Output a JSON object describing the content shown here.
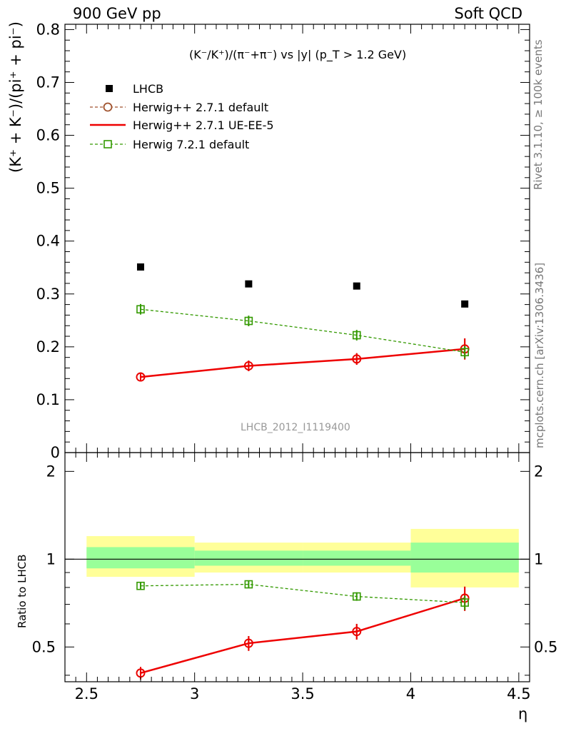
{
  "header": {
    "left": "900 GeV pp",
    "right": "Soft QCD"
  },
  "side_labels": {
    "upper": "Rivet 3.1.10, ≥ 100k events",
    "lower": "mcplots.cern.ch [arXiv:1306.3436]"
  },
  "chart_data": [
    {
      "type": "scatter",
      "title": "(K⁻/K⁺)/(π⁻+π⁻) vs |y| (p_T > 1.2 GeV)",
      "ylabel": "(K⁺ + K⁻)/(pi⁺ + pi⁻)",
      "analysis_id": "LHCB_2012_I1119400",
      "xlim": [
        2.4,
        4.55
      ],
      "ylim": [
        0,
        0.81
      ],
      "yticks": [
        "0.1",
        "0.2",
        "0.3",
        "0.4",
        "0.5",
        "0.6",
        "0.7",
        "0.8"
      ],
      "legend_position": "top-left",
      "series": [
        {
          "name": "LHCB",
          "style": "data",
          "color": "#000000",
          "x": [
            2.75,
            3.25,
            3.75,
            4.25
          ],
          "y": [
            0.351,
            0.319,
            0.315,
            0.281
          ],
          "err": [
            0,
            0,
            0,
            0
          ]
        },
        {
          "name": "Herwig++ 2.7.1 default",
          "style": "dashed-circle",
          "color": "#a0522d",
          "x": [
            2.75,
            3.25,
            3.75,
            4.25
          ],
          "y": [
            0.143,
            0.164,
            0.177,
            0.196
          ],
          "err": [
            0.008,
            0.01,
            0.011,
            0.02
          ]
        },
        {
          "name": "Herwig++ 2.7.1 UE-EE-5",
          "style": "solid-circle",
          "color": "#ee0000",
          "x": [
            2.75,
            3.25,
            3.75,
            4.25
          ],
          "y": [
            0.143,
            0.164,
            0.177,
            0.196
          ],
          "err": [
            0.008,
            0.01,
            0.011,
            0.02
          ]
        },
        {
          "name": "Herwig 7.2.1 default",
          "style": "dashed-square",
          "color": "#339900",
          "x": [
            2.75,
            3.25,
            3.75,
            4.25
          ],
          "y": [
            0.271,
            0.249,
            0.222,
            0.19
          ],
          "err": [
            0.01,
            0.01,
            0.01,
            0.012
          ]
        }
      ]
    },
    {
      "type": "scatter",
      "ylabel": "Ratio to LHCB",
      "xlabel": "η",
      "xlim": [
        2.4,
        4.55
      ],
      "ylim": [
        0.38,
        2.32
      ],
      "yticks": [
        "0.5",
        "1",
        "2"
      ],
      "xticks": [
        "2.5",
        "3",
        "3.5",
        "4",
        "4.5"
      ],
      "log_y": true,
      "bands": [
        {
          "x": [
            2.5,
            3.0
          ],
          "green": [
            0.93,
            1.1
          ],
          "yellow": [
            0.87,
            1.2
          ]
        },
        {
          "x": [
            3.0,
            3.5
          ],
          "green": [
            0.95,
            1.07
          ],
          "yellow": [
            0.9,
            1.14
          ]
        },
        {
          "x": [
            3.5,
            4.0
          ],
          "green": [
            0.95,
            1.07
          ],
          "yellow": [
            0.9,
            1.14
          ]
        },
        {
          "x": [
            4.0,
            4.5
          ],
          "green": [
            0.9,
            1.14
          ],
          "yellow": [
            0.8,
            1.27
          ]
        }
      ],
      "series": [
        {
          "name": "Herwig++ 2.7.1 default",
          "style": "dashed-circle",
          "color": "#a0522d",
          "x": [
            2.75,
            3.25,
            3.75,
            4.25
          ],
          "y": [
            0.407,
            0.515,
            0.565,
            0.735
          ],
          "err": [
            0.02,
            0.03,
            0.035,
            0.07
          ]
        },
        {
          "name": "Herwig++ 2.7.1 UE-EE-5",
          "style": "solid-circle",
          "color": "#ee0000",
          "x": [
            2.75,
            3.25,
            3.75,
            4.25
          ],
          "y": [
            0.407,
            0.515,
            0.565,
            0.735
          ],
          "err": [
            0.02,
            0.03,
            0.035,
            0.07
          ]
        },
        {
          "name": "Herwig 7.2.1 default",
          "style": "dashed-square",
          "color": "#339900",
          "x": [
            2.75,
            3.25,
            3.75,
            4.25
          ],
          "y": [
            0.81,
            0.82,
            0.745,
            0.71
          ],
          "err": [
            0.025,
            0.025,
            0.025,
            0.04
          ]
        }
      ]
    }
  ]
}
